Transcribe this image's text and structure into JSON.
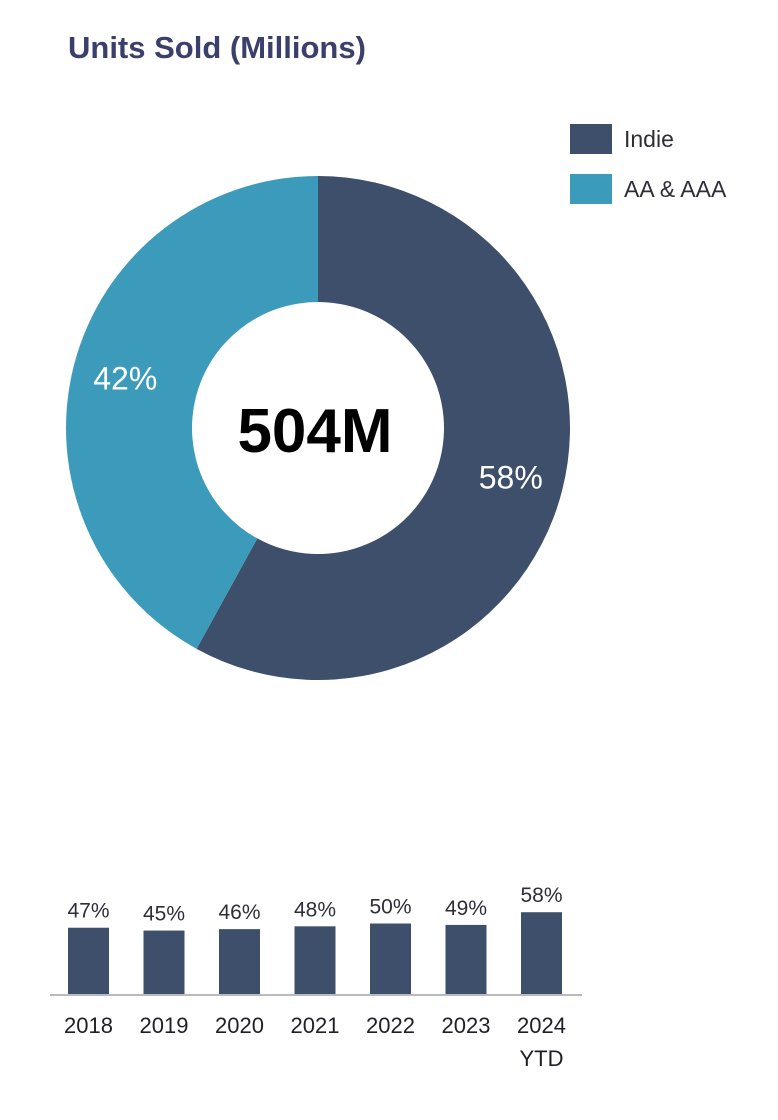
{
  "chart_data": [
    {
      "type": "pie",
      "title": "Units Sold (Millions)",
      "center_label": "504M",
      "legend_position": "top-right",
      "slices": [
        {
          "name": "Indie",
          "value": 58,
          "label": "58%",
          "color": "#3e4f6b"
        },
        {
          "name": "AA & AAA",
          "value": 42,
          "label": "42%",
          "color": "#3c9bba"
        }
      ]
    },
    {
      "type": "bar",
      "categories": [
        "2018",
        "2019",
        "2020",
        "2021",
        "2022",
        "2023",
        "2024 YTD"
      ],
      "category_lines": [
        [
          "2018"
        ],
        [
          "2019"
        ],
        [
          "2020"
        ],
        [
          "2021"
        ],
        [
          "2022"
        ],
        [
          "2023"
        ],
        [
          "2024",
          "YTD"
        ]
      ],
      "values": [
        47,
        45,
        46,
        48,
        50,
        49,
        58
      ],
      "labels": [
        "47%",
        "45%",
        "46%",
        "48%",
        "50%",
        "49%",
        "58%"
      ],
      "color": "#3e4f6b",
      "grid": false
    }
  ]
}
